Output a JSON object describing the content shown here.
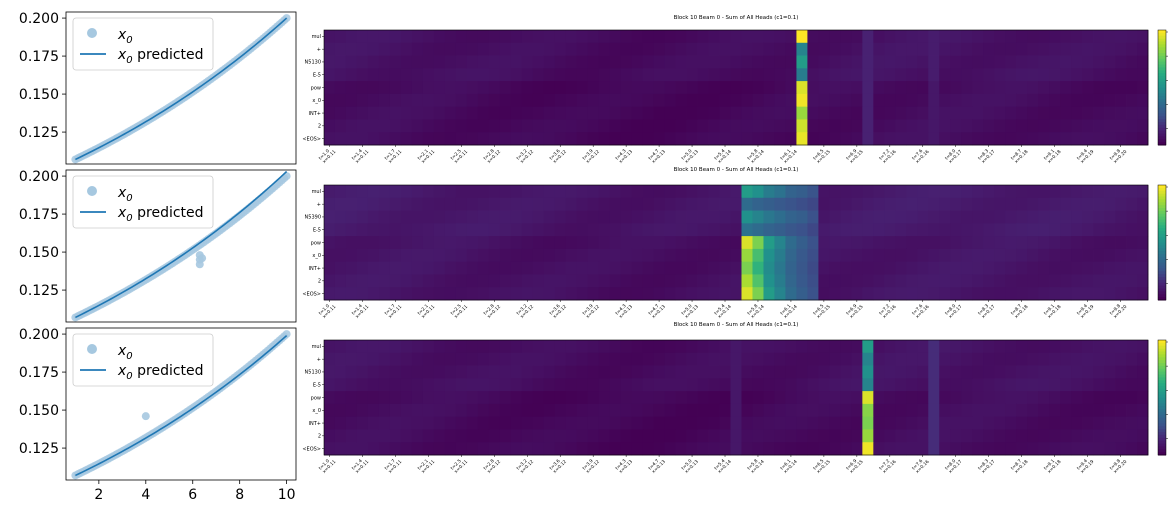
{
  "chart_data": [
    {
      "type": "scatter",
      "panel": "left-top",
      "xlim": [
        0.6,
        10.4
      ],
      "ylim": [
        0.104,
        0.204
      ],
      "yticks": [
        0.125,
        0.15,
        0.175,
        0.2
      ],
      "ytick_labels": [
        "0.125",
        "0.150",
        "0.175",
        "0.200"
      ],
      "xticks": [],
      "xtick_labels": [],
      "legend": [
        "x_0",
        "x_0 predicted"
      ],
      "legend_placement": "upper-left",
      "series": [
        {
          "name": "x_0",
          "kind": "points",
          "color": "#a6c8e0",
          "growth": "exponential",
          "x_start": 1.0,
          "x_end": 10.0,
          "y_start": 0.107,
          "y_end": 0.2,
          "count": 90,
          "outliers": []
        },
        {
          "name": "x_0 predicted",
          "kind": "line",
          "color": "#1f77b4",
          "growth": "exponential",
          "x_start": 1.0,
          "x_end": 10.0,
          "y_start": 0.107,
          "y_end": 0.2
        }
      ]
    },
    {
      "type": "scatter",
      "panel": "left-middle",
      "xlim": [
        0.6,
        10.4
      ],
      "ylim": [
        0.104,
        0.204
      ],
      "yticks": [
        0.125,
        0.15,
        0.175,
        0.2
      ],
      "ytick_labels": [
        "0.125",
        "0.150",
        "0.175",
        "0.200"
      ],
      "xticks": [],
      "xtick_labels": [],
      "legend": [
        "x_0",
        "x_0 predicted"
      ],
      "legend_placement": "upper-left",
      "series": [
        {
          "name": "x_0",
          "kind": "points",
          "color": "#a6c8e0",
          "growth": "exponential",
          "x_start": 1.0,
          "x_end": 10.0,
          "y_start": 0.107,
          "y_end": 0.2,
          "count": 90,
          "outliers": [
            [
              6.3,
              0.148
            ],
            [
              6.3,
              0.145
            ],
            [
              6.3,
              0.142
            ],
            [
              6.4,
              0.146
            ]
          ]
        },
        {
          "name": "x_0 predicted",
          "kind": "line",
          "color": "#1f77b4",
          "growth": "exponential",
          "x_start": 1.0,
          "x_end": 10.0,
          "y_start": 0.107,
          "y_end": 0.203
        }
      ]
    },
    {
      "type": "scatter",
      "panel": "left-bottom",
      "xlim": [
        0.6,
        10.4
      ],
      "ylim": [
        0.104,
        0.204
      ],
      "yticks": [
        0.125,
        0.15,
        0.175,
        0.2
      ],
      "ytick_labels": [
        "0.125",
        "0.150",
        "0.175",
        "0.200"
      ],
      "xticks": [
        2,
        4,
        6,
        8,
        10
      ],
      "xtick_labels": [
        "2",
        "4",
        "6",
        "8",
        "10"
      ],
      "legend": [
        "x_0",
        "x_0 predicted"
      ],
      "legend_placement": "upper-left",
      "series": [
        {
          "name": "x_0",
          "kind": "points",
          "color": "#a6c8e0",
          "growth": "exponential",
          "x_start": 1.0,
          "x_end": 10.0,
          "y_start": 0.107,
          "y_end": 0.2,
          "count": 90,
          "outliers": [
            [
              4.0,
              0.146
            ]
          ]
        },
        {
          "name": "x_0 predicted",
          "kind": "line",
          "color": "#1f77b4",
          "growth": "exponential",
          "x_start": 1.0,
          "x_end": 10.0,
          "y_start": 0.107,
          "y_end": 0.199
        }
      ]
    },
    {
      "type": "heatmap",
      "panel": "right-top",
      "title": "Block 10 Beam 0 - Sum of All Heads (c1=0.1)",
      "rows": [
        "mul",
        "+",
        "N5130",
        "E-5",
        "pow",
        "x_0",
        "INT+",
        "2",
        "<EOS>"
      ],
      "xtick_labels": [
        "t=1.0\nx=0.11",
        "t=1.4\nx=0.11",
        "t=1.7\nx=0.11",
        "t=2.1\nx=0.11",
        "t=2.5\nx=0.11",
        "t=2.8\nx=0.12",
        "t=3.2\nx=0.12",
        "t=3.6\nx=0.12",
        "t=3.9\nx=0.12",
        "t=4.3\nx=0.13",
        "t=4.7\nx=0.13",
        "t=5.0\nx=0.13",
        "t=5.4\nx=0.14",
        "t=5.8\nx=0.14",
        "t=6.1\nx=0.14",
        "t=6.5\nx=0.15",
        "t=6.9\nx=0.15",
        "t=7.2\nx=0.16",
        "t=7.6\nx=0.16",
        "t=8.0\nx=0.17",
        "t=8.3\nx=0.17",
        "t=8.7\nx=0.18",
        "t=9.1\nx=0.18",
        "t=9.4\nx=0.19",
        "t=9.8\nx=0.20"
      ],
      "n_cols": 75,
      "bright_columns": [
        {
          "col": 43,
          "rows": [
            1.0,
            0.45,
            0.55,
            0.42,
            0.95,
            0.98,
            0.85,
            0.93,
            0.97
          ]
        },
        {
          "col": 49,
          "rows": [
            0.12,
            0.12,
            0.12,
            0.12,
            0.12,
            0.12,
            0.12,
            0.12,
            0.12
          ]
        },
        {
          "col": 55,
          "rows": [
            0.1,
            0.1,
            0.1,
            0.1,
            0.08,
            0.08,
            0.08,
            0.08,
            0.08
          ]
        }
      ],
      "background_level": 0.03,
      "colorbar": {
        "colormap": "viridis",
        "ticks_visible": true
      }
    },
    {
      "type": "heatmap",
      "panel": "right-middle",
      "title": "Block 10 Beam 0 - Sum of All Heads (c1=0.1)",
      "rows": [
        "mul",
        "+",
        "N5390",
        "E-5",
        "pow",
        "x_0",
        "INT+",
        "2",
        "<EOS>"
      ],
      "xtick_labels": [
        "t=1.0\nx=0.11",
        "t=1.4\nx=0.11",
        "t=1.7\nx=0.11",
        "t=2.1\nx=0.11",
        "t=2.5\nx=0.11",
        "t=2.8\nx=0.12",
        "t=3.2\nx=0.12",
        "t=3.6\nx=0.12",
        "t=3.9\nx=0.12",
        "t=4.3\nx=0.13",
        "t=4.7\nx=0.13",
        "t=5.0\nx=0.13",
        "t=5.4\nx=0.14",
        "t=5.8\nx=0.14",
        "t=6.1\nx=0.14",
        "t=6.5\nx=0.15",
        "t=6.9\nx=0.15",
        "t=7.2\nx=0.16",
        "t=7.6\nx=0.16",
        "t=8.0\nx=0.17",
        "t=8.3\nx=0.17",
        "t=8.7\nx=0.18",
        "t=9.1\nx=0.18",
        "t=9.4\nx=0.19",
        "t=9.8\nx=0.20"
      ],
      "n_cols": 75,
      "bright_columns": [
        {
          "col": 38,
          "rows": [
            0.55,
            0.35,
            0.5,
            0.38,
            0.95,
            0.85,
            0.8,
            0.88,
            0.95
          ]
        },
        {
          "col": 39,
          "rows": [
            0.5,
            0.32,
            0.45,
            0.35,
            0.8,
            0.7,
            0.65,
            0.72,
            0.8
          ]
        },
        {
          "col": 40,
          "rows": [
            0.42,
            0.3,
            0.4,
            0.32,
            0.55,
            0.5,
            0.48,
            0.5,
            0.55
          ]
        },
        {
          "col": 41,
          "rows": [
            0.38,
            0.28,
            0.36,
            0.3,
            0.45,
            0.42,
            0.4,
            0.42,
            0.45
          ]
        },
        {
          "col": 42,
          "rows": [
            0.32,
            0.26,
            0.32,
            0.27,
            0.35,
            0.33,
            0.32,
            0.33,
            0.35
          ]
        },
        {
          "col": 43,
          "rows": [
            0.3,
            0.24,
            0.3,
            0.25,
            0.3,
            0.28,
            0.27,
            0.28,
            0.3
          ]
        },
        {
          "col": 44,
          "rows": [
            0.26,
            0.22,
            0.25,
            0.22,
            0.25,
            0.24,
            0.23,
            0.24,
            0.25
          ]
        }
      ],
      "background_level": 0.06,
      "colorbar": {
        "colormap": "viridis",
        "ticks_visible": true
      }
    },
    {
      "type": "heatmap",
      "panel": "right-bottom",
      "title": "Block 10 Beam 0 - Sum of All Heads (c1=0.1)",
      "rows": [
        "mul",
        "+",
        "N5130",
        "E-5",
        "pow",
        "x_0",
        "INT+",
        "2",
        "<EOS>"
      ],
      "xtick_labels": [
        "t=1.0\nx=0.11",
        "t=1.4\nx=0.11",
        "t=1.7\nx=0.11",
        "t=2.1\nx=0.11",
        "t=2.5\nx=0.11",
        "t=2.8\nx=0.12",
        "t=3.2\nx=0.12",
        "t=3.6\nx=0.12",
        "t=3.9\nx=0.12",
        "t=4.3\nx=0.13",
        "t=4.7\nx=0.13",
        "t=5.0\nx=0.13",
        "t=5.4\nx=0.14",
        "t=5.8\nx=0.14",
        "t=6.1\nx=0.14",
        "t=6.5\nx=0.15",
        "t=6.9\nx=0.15",
        "t=7.2\nx=0.16",
        "t=7.6\nx=0.16",
        "t=8.0\nx=0.17",
        "t=8.3\nx=0.17",
        "t=8.7\nx=0.18",
        "t=9.1\nx=0.18",
        "t=9.4\nx=0.19",
        "t=9.8\nx=0.20"
      ],
      "n_cols": 75,
      "bright_columns": [
        {
          "col": 37,
          "rows": [
            0.08,
            0.08,
            0.08,
            0.08,
            0.08,
            0.08,
            0.08,
            0.08,
            0.08
          ]
        },
        {
          "col": 49,
          "rows": [
            0.55,
            0.45,
            0.5,
            0.45,
            0.95,
            0.82,
            0.8,
            0.85,
            0.98
          ]
        },
        {
          "col": 55,
          "rows": [
            0.15,
            0.15,
            0.15,
            0.15,
            0.15,
            0.15,
            0.15,
            0.15,
            0.15
          ]
        }
      ],
      "background_level": 0.03,
      "colorbar": {
        "colormap": "viridis",
        "ticks_visible": true
      }
    }
  ]
}
